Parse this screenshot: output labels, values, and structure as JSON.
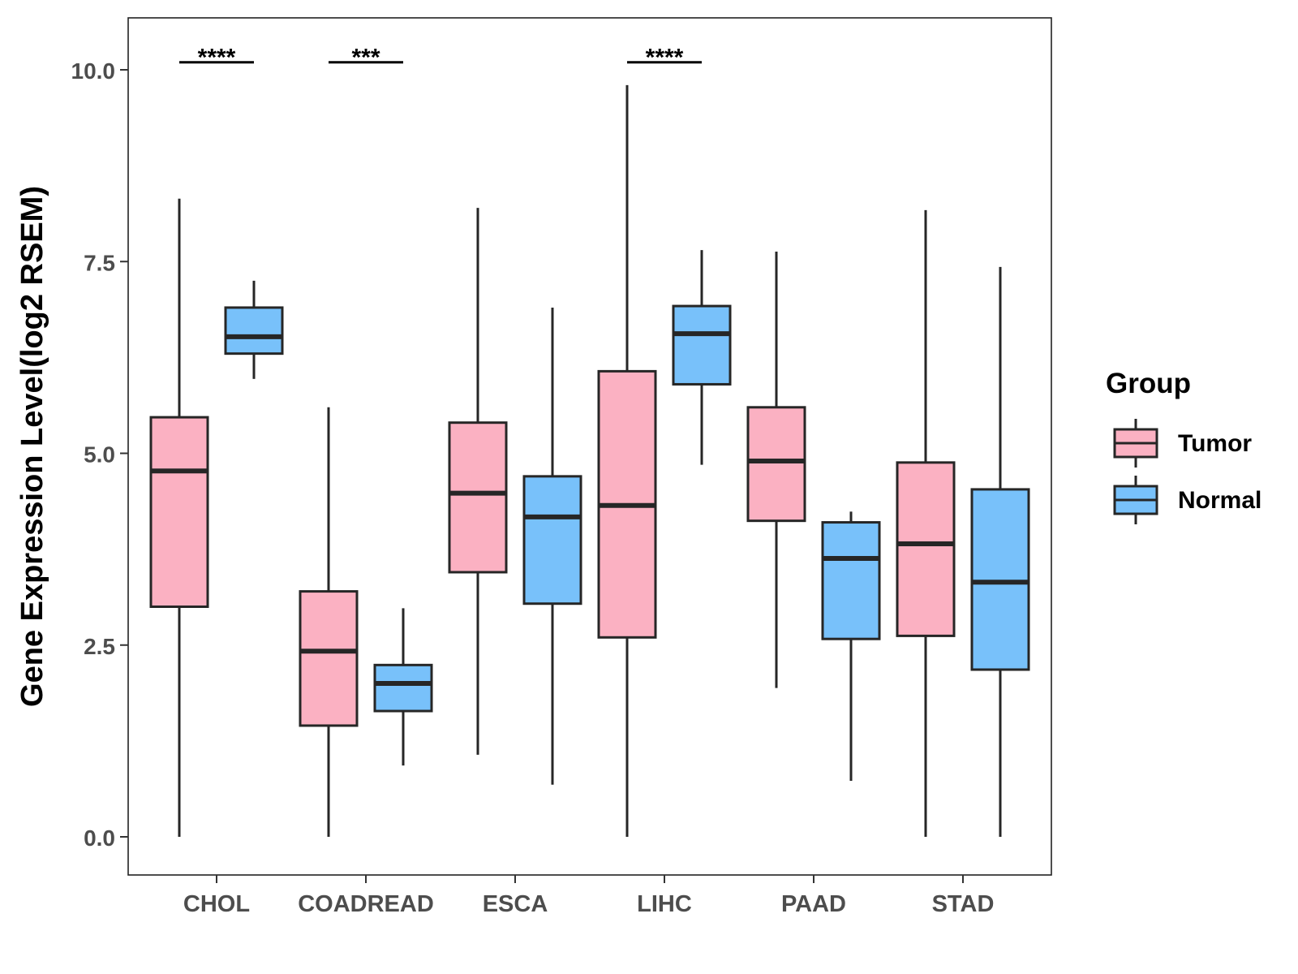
{
  "chart_data": {
    "type": "boxplot",
    "title": "",
    "xlabel": "",
    "ylabel": "Gene Expression Level(log2 RSEM)",
    "ylim": [
      -0.5,
      10.7
    ],
    "yticks": [
      0.0,
      2.5,
      5.0,
      7.5,
      10.0
    ],
    "ytick_labels": [
      "0.0",
      "2.5",
      "5.0",
      "7.5",
      "10.0"
    ],
    "categories": [
      "CHOL",
      "COADREAD",
      "ESCA",
      "LIHC",
      "PAAD",
      "STAD"
    ],
    "legend": {
      "title": "Group",
      "position": "right",
      "entries": [
        {
          "name": "Tumor",
          "color": "#FBB1C2"
        },
        {
          "name": "Normal",
          "color": "#78C1FA"
        }
      ]
    },
    "series": [
      {
        "name": "Tumor",
        "color": "#FBB1C2",
        "boxes": [
          {
            "category": "CHOL",
            "min": 0.0,
            "q1": 3.0,
            "median": 4.77,
            "q3": 5.47,
            "max": 8.32
          },
          {
            "category": "COADREAD",
            "min": 0.0,
            "q1": 1.45,
            "median": 2.42,
            "q3": 3.2,
            "max": 5.6
          },
          {
            "category": "ESCA",
            "min": 1.07,
            "q1": 3.45,
            "median": 4.48,
            "q3": 5.4,
            "max": 8.2
          },
          {
            "category": "LIHC",
            "min": 0.0,
            "q1": 2.6,
            "median": 4.32,
            "q3": 6.07,
            "max": 9.8
          },
          {
            "category": "PAAD",
            "min": 1.94,
            "q1": 4.12,
            "median": 4.9,
            "q3": 5.6,
            "max": 7.63
          },
          {
            "category": "STAD",
            "min": 0.0,
            "q1": 2.62,
            "median": 3.82,
            "q3": 4.88,
            "max": 8.17
          }
        ]
      },
      {
        "name": "Normal",
        "color": "#78C1FA",
        "boxes": [
          {
            "category": "CHOL",
            "min": 5.97,
            "q1": 6.3,
            "median": 6.52,
            "q3": 6.9,
            "max": 7.25
          },
          {
            "category": "COADREAD",
            "min": 0.93,
            "q1": 1.64,
            "median": 2.0,
            "q3": 2.24,
            "max": 2.98
          },
          {
            "category": "ESCA",
            "min": 0.68,
            "q1": 3.04,
            "median": 4.17,
            "q3": 4.7,
            "max": 6.9
          },
          {
            "category": "LIHC",
            "min": 4.85,
            "q1": 5.9,
            "median": 6.56,
            "q3": 6.92,
            "max": 7.65
          },
          {
            "category": "PAAD",
            "min": 0.73,
            "q1": 2.58,
            "median": 3.63,
            "q3": 4.1,
            "max": 4.24
          },
          {
            "category": "STAD",
            "min": 0.0,
            "q1": 2.18,
            "median": 3.32,
            "q3": 4.53,
            "max": 7.43
          }
        ]
      }
    ],
    "significance": [
      {
        "category": "CHOL",
        "label": "****",
        "y": 10.13
      },
      {
        "category": "COADREAD",
        "label": "***",
        "y": 10.13
      },
      {
        "category": "LIHC",
        "label": "****",
        "y": 10.13
      }
    ]
  }
}
